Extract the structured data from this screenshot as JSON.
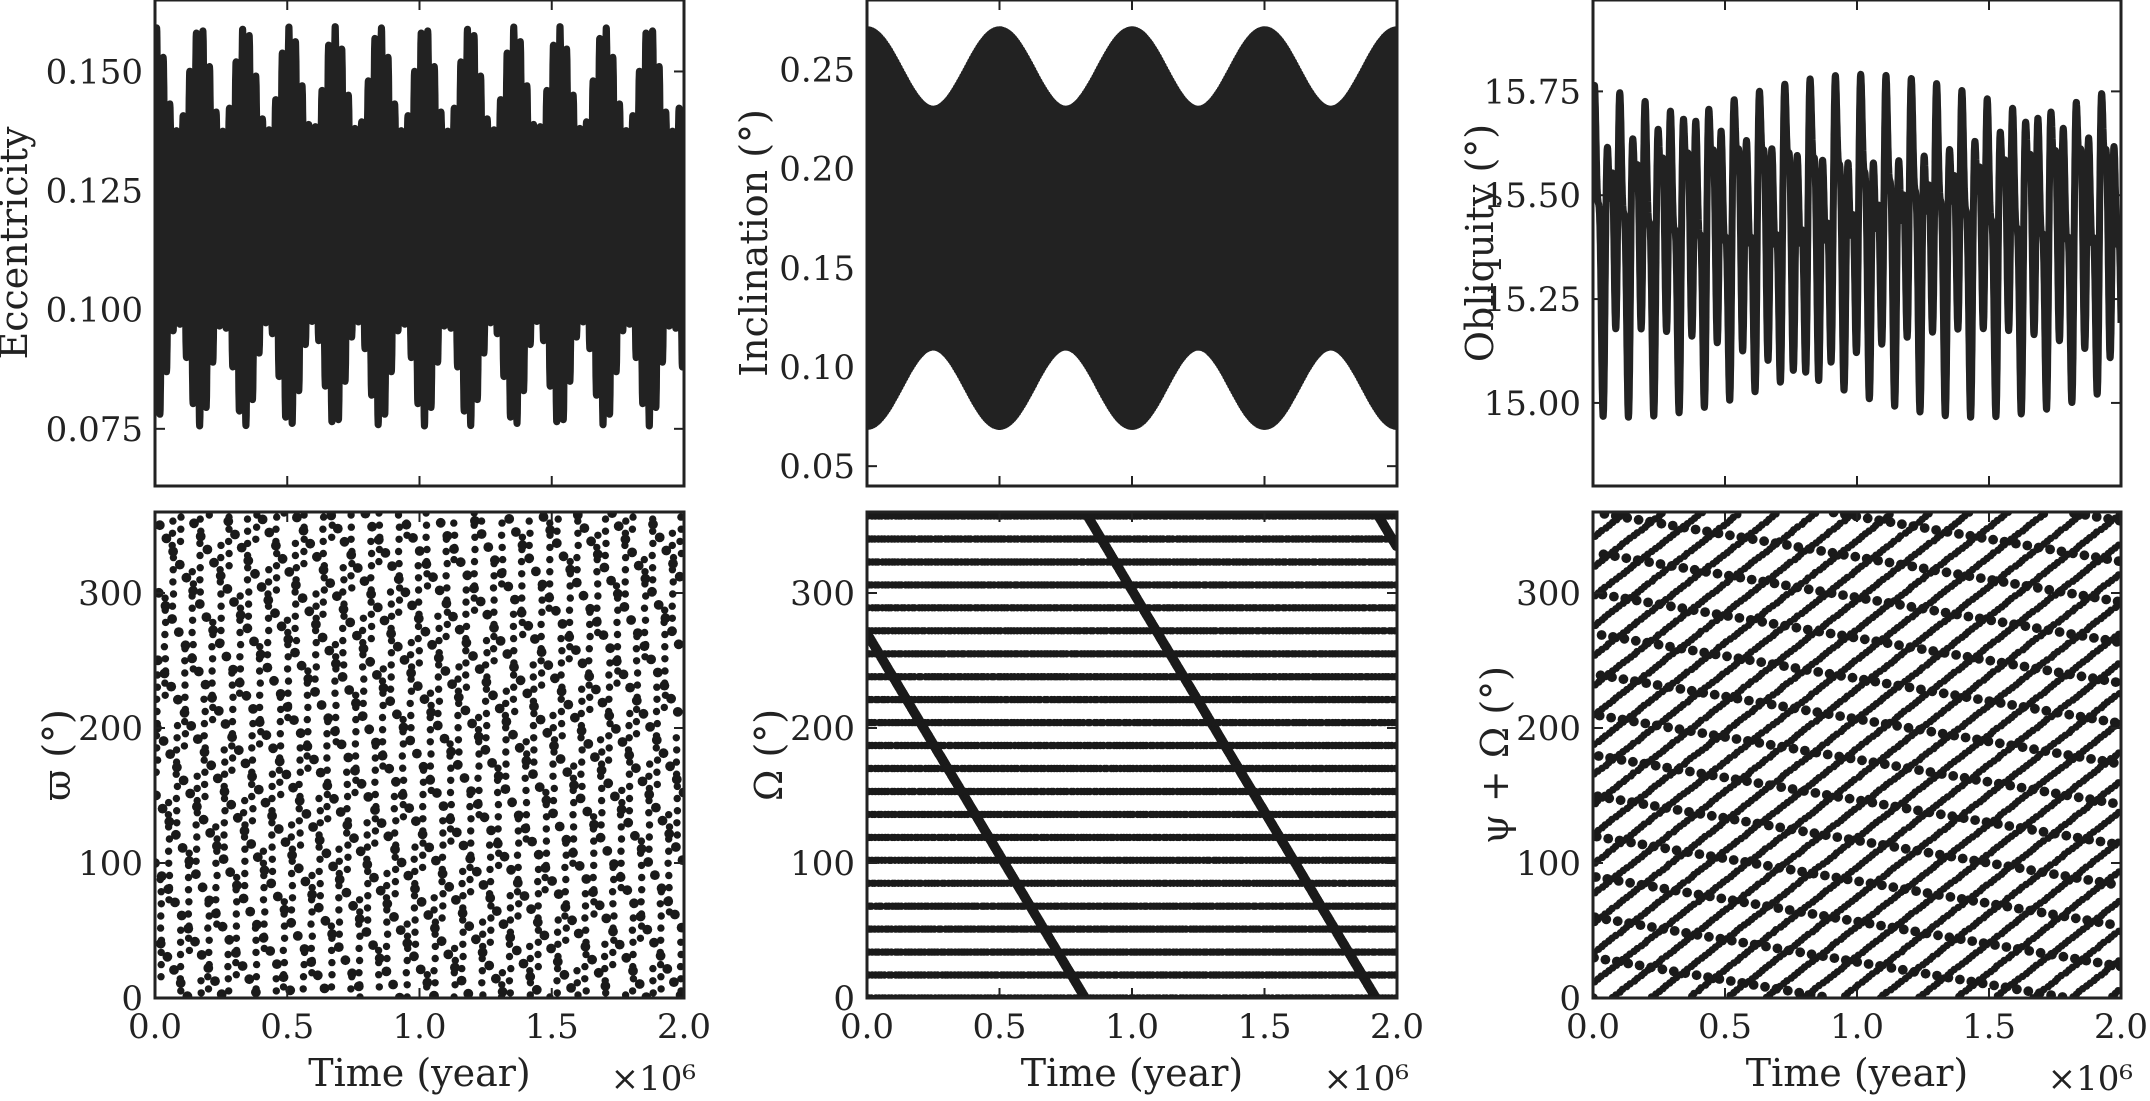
{
  "chart_data": [
    {
      "id": "ecc",
      "type": "line",
      "ylabel": "Eccentricity",
      "xlabel": "",
      "xlim": [
        0,
        2000000
      ],
      "ylim": [
        0.063,
        0.165
      ],
      "yticks": [
        0.075,
        0.1,
        0.125,
        0.15
      ],
      "ytick_labels": [
        "0.075",
        "0.100",
        "0.125",
        "0.150"
      ],
      "xticks": [
        0,
        500000,
        1000000,
        1500000,
        2000000
      ],
      "xtick_labels": [],
      "series": [
        {
          "signal": "modulated-oscillation",
          "x_range": [
            0,
            2000000
          ],
          "mean": 0.1175,
          "amplitude_min": 0.02,
          "amplitude_max": 0.042,
          "period_years": 25000,
          "modulation_period_years": 170000
        }
      ]
    },
    {
      "id": "inc",
      "type": "line",
      "ylabel": "Inclination (°)",
      "xlabel": "",
      "xlim": [
        0,
        2000000
      ],
      "ylim": [
        0.04,
        0.285
      ],
      "yticks": [
        0.05,
        0.1,
        0.15,
        0.2,
        0.25
      ],
      "ytick_labels": [
        "0.05",
        "0.10",
        "0.15",
        "0.20",
        "0.25"
      ],
      "xticks": [
        0,
        500000,
        1000000,
        1500000,
        2000000
      ],
      "xtick_labels": [],
      "series": [
        {
          "signal": "modulated-oscillation",
          "x_range": [
            0,
            2000000
          ],
          "mean": 0.17,
          "amplitude_min": 0.06,
          "amplitude_max": 0.1,
          "period_years": 6000,
          "modulation_period_years": 500000
        }
      ]
    },
    {
      "id": "obl",
      "type": "line",
      "ylabel": "Obliquity (°)",
      "xlabel": "",
      "xlim": [
        0,
        2000000
      ],
      "ylim": [
        14.8,
        15.97
      ],
      "yticks": [
        15.0,
        15.25,
        15.5,
        15.75
      ],
      "ytick_labels": [
        "15.00",
        "15.25",
        "15.50",
        "15.75"
      ],
      "xticks": [
        0,
        500000,
        1000000,
        1500000,
        2000000
      ],
      "xtick_labels": [],
      "series": [
        {
          "signal": "multi-frequency-oscillation",
          "x_range": [
            0,
            2000000
          ],
          "mean": 15.42,
          "amplitude_max": 0.47,
          "period_years": 48000
        }
      ]
    },
    {
      "id": "varpi",
      "type": "scatter",
      "ylabel": "ϖ (°)",
      "xlabel": "Time (year)",
      "xscale_label": "×10⁶",
      "xlim": [
        0,
        2000000
      ],
      "ylim": [
        0,
        360
      ],
      "yticks": [
        0,
        100,
        200,
        300
      ],
      "ytick_labels": [
        "0",
        "100",
        "200",
        "300"
      ],
      "xticks": [
        0,
        500000,
        1000000,
        1500000,
        2000000
      ],
      "xtick_labels": [
        "0.0",
        "0.5",
        "1.0",
        "1.5",
        "2.0"
      ],
      "series": [
        {
          "signal": "wrapped-angle",
          "x_range": [
            0,
            2000000
          ],
          "y_start": 100,
          "rate_deg_per_year": 0.0139,
          "fringe_period_years": 52000
        }
      ]
    },
    {
      "id": "omega",
      "type": "scatter",
      "ylabel": "Ω (°)",
      "xlabel": "Time (year)",
      "xscale_label": "×10⁶",
      "xlim": [
        0,
        2000000
      ],
      "ylim": [
        0,
        360
      ],
      "yticks": [
        0,
        100,
        200,
        300
      ],
      "ytick_labels": [
        "0",
        "100",
        "200",
        "300"
      ],
      "xticks": [
        0,
        500000,
        1000000,
        1500000,
        2000000
      ],
      "xtick_labels": [
        "0.0",
        "0.5",
        "1.0",
        "1.5",
        "2.0"
      ],
      "series": [
        {
          "signal": "wrapped-angle",
          "x_range": [
            0,
            2000000
          ],
          "y_start": 270,
          "rate_deg_per_year": -0.000328,
          "fringe_period_years": 500000,
          "background_dot_lattice": true
        }
      ]
    },
    {
      "id": "psiomega",
      "type": "scatter",
      "ylabel": "ψ + Ω (°)",
      "xlabel": "Time (year)",
      "xscale_label": "×10⁶",
      "xlim": [
        0,
        2000000
      ],
      "ylim": [
        0,
        360
      ],
      "yticks": [
        0,
        100,
        200,
        300
      ],
      "ytick_labels": [
        "0",
        "100",
        "200",
        "300"
      ],
      "xticks": [
        0,
        500000,
        1000000,
        1500000,
        2000000
      ],
      "xtick_labels": [
        "0.0",
        "0.5",
        "1.0",
        "1.5",
        "2.0"
      ],
      "series": [
        {
          "signal": "wrapped-angle",
          "x_range": [
            0,
            2000000
          ],
          "y_start": 0,
          "rate_deg_per_year": 0.0083,
          "fringe_period_years": 70000,
          "background_dot_lattice": true
        }
      ]
    }
  ]
}
